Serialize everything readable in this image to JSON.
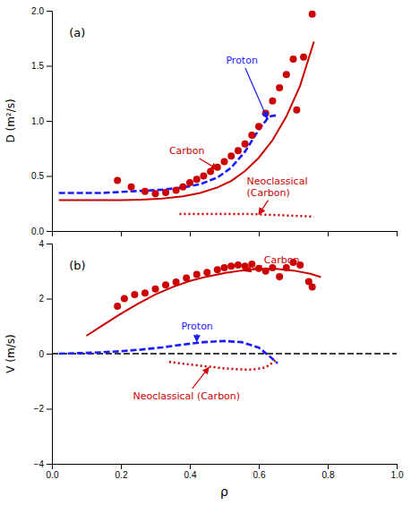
{
  "chart_data": [
    {
      "type": "line",
      "title": "(a)",
      "ylabel": "D (m²/s)",
      "xlim": [
        0.0,
        1.0
      ],
      "xticks": [
        {
          "value": 0,
          "label": "0.0"
        },
        0.2,
        0.4,
        0.6,
        0.8,
        {
          "value": 1,
          "label": "1.0"
        }
      ],
      "ylim": [
        0,
        2.0
      ],
      "yticks": [
        {
          "value": 0,
          "label": "0.0"
        },
        0.5,
        {
          "value": 1,
          "label": "1.0"
        },
        1.5,
        {
          "value": 2,
          "label": "2.0"
        }
      ],
      "tick_labels": "y",
      "series": [
        {
          "type": "line",
          "color": "#cc0000",
          "line_style": "solid",
          "x": [
            0.02,
            0.08,
            0.14,
            0.2,
            0.26,
            0.32,
            0.38,
            0.43,
            0.48,
            0.52,
            0.56,
            0.6,
            0.64,
            0.68,
            0.72,
            0.76
          ],
          "values": [
            0.28,
            0.28,
            0.28,
            0.28,
            0.285,
            0.295,
            0.315,
            0.345,
            0.395,
            0.455,
            0.545,
            0.665,
            0.825,
            1.04,
            1.32,
            1.72
          ]
        },
        {
          "type": "line",
          "color": "#1a1aff",
          "line_style": "dashed",
          "x": [
            0.02,
            0.08,
            0.14,
            0.2,
            0.26,
            0.32,
            0.38,
            0.43,
            0.48,
            0.52,
            0.56,
            0.6,
            0.63,
            0.65
          ],
          "values": [
            0.345,
            0.345,
            0.345,
            0.355,
            0.365,
            0.375,
            0.395,
            0.425,
            0.485,
            0.575,
            0.72,
            0.92,
            1.04,
            1.05
          ]
        },
        {
          "type": "line",
          "color": "#cc0000",
          "line_style": "dotted",
          "x": [
            0.37,
            0.41,
            0.45,
            0.49,
            0.53,
            0.57,
            0.61,
            0.65,
            0.69,
            0.73,
            0.76
          ],
          "values": [
            0.155,
            0.155,
            0.155,
            0.155,
            0.155,
            0.155,
            0.15,
            0.145,
            0.14,
            0.135,
            0.13
          ]
        },
        {
          "type": "scatter",
          "color": "#cc0000",
          "marker": "circle",
          "x": [
            0.19,
            0.23,
            0.27,
            0.3,
            0.33,
            0.36,
            0.38,
            0.4,
            0.42,
            0.44,
            0.46,
            0.48,
            0.5,
            0.52,
            0.54,
            0.56,
            0.58,
            0.6,
            0.62,
            0.64,
            0.66,
            0.68,
            0.7,
            0.71,
            0.73,
            0.755
          ],
          "values": [
            0.46,
            0.4,
            0.36,
            0.34,
            0.35,
            0.37,
            0.4,
            0.44,
            0.47,
            0.5,
            0.54,
            0.58,
            0.63,
            0.68,
            0.73,
            0.79,
            0.87,
            0.95,
            1.07,
            1.18,
            1.3,
            1.42,
            1.56,
            1.1,
            1.58,
            1.97
          ]
        }
      ],
      "annotations": [
        {
          "text": "Carbon",
          "color": "#cc0000",
          "x": 0.48,
          "y": 0.56,
          "text_x": 0.34,
          "text_y": 0.7
        },
        {
          "text": "Proton",
          "color": "#1a1aff",
          "x": 0.625,
          "y": 1.02,
          "text_x": 0.505,
          "text_y": 1.52
        },
        {
          "text": "Neoclassical\n(Carbon)",
          "color": "#cc0000",
          "x": 0.6,
          "y": 0.152,
          "text_x": 0.565,
          "text_y": 0.32
        }
      ]
    },
    {
      "type": "line",
      "title": "(b)",
      "ylabel": "V (m/s)",
      "xlabel": "ρ",
      "xlim": [
        0.0,
        1.0
      ],
      "xticks": [
        {
          "value": 0,
          "label": "0.0"
        },
        0.2,
        0.4,
        0.6,
        0.8,
        {
          "value": 1,
          "label": "1.0"
        }
      ],
      "ylim": [
        -4.0,
        4.0
      ],
      "yticks": [
        {
          "value": -4,
          "label": "−4"
        },
        {
          "value": -2,
          "label": "−2"
        },
        0,
        2,
        4
      ],
      "series": [
        {
          "type": "hline",
          "color": "#000000",
          "line_style": "dashed",
          "values": [
            0
          ]
        },
        {
          "type": "line",
          "color": "#cc0000",
          "line_style": "solid",
          "x": [
            0.1,
            0.15,
            0.2,
            0.25,
            0.3,
            0.35,
            0.4,
            0.45,
            0.5,
            0.55,
            0.6,
            0.65,
            0.7,
            0.75,
            0.78
          ],
          "values": [
            0.65,
            1.05,
            1.45,
            1.82,
            2.15,
            2.42,
            2.64,
            2.8,
            2.93,
            3.02,
            3.08,
            3.08,
            3.02,
            2.9,
            2.78
          ]
        },
        {
          "type": "line",
          "color": "#1a1aff",
          "line_style": "dashed",
          "x": [
            0.02,
            0.08,
            0.14,
            0.2,
            0.26,
            0.32,
            0.38,
            0.44,
            0.5,
            0.55,
            0.6,
            0.63,
            0.645,
            0.655
          ],
          "values": [
            0.0,
            0.02,
            0.05,
            0.09,
            0.15,
            0.23,
            0.33,
            0.42,
            0.46,
            0.42,
            0.22,
            -0.08,
            -0.25,
            -0.35
          ]
        },
        {
          "type": "line",
          "color": "#cc0000",
          "line_style": "dotted",
          "x": [
            0.34,
            0.39,
            0.44,
            0.49,
            0.54,
            0.58,
            0.62,
            0.645,
            0.655
          ],
          "values": [
            -0.3,
            -0.38,
            -0.45,
            -0.52,
            -0.57,
            -0.58,
            -0.5,
            -0.28,
            -0.18
          ]
        },
        {
          "type": "scatter",
          "color": "#cc0000",
          "marker": "circle",
          "x": [
            0.19,
            0.21,
            0.24,
            0.27,
            0.3,
            0.33,
            0.36,
            0.39,
            0.42,
            0.45,
            0.48,
            0.5,
            0.52,
            0.54,
            0.56,
            0.58,
            0.6,
            0.62,
            0.64,
            0.66,
            0.68,
            0.7,
            0.72,
            0.745,
            0.755
          ],
          "values": [
            1.72,
            2.0,
            2.15,
            2.2,
            2.35,
            2.5,
            2.6,
            2.75,
            2.88,
            2.95,
            3.05,
            3.12,
            3.18,
            3.22,
            3.18,
            3.25,
            3.1,
            3.0,
            3.12,
            2.8,
            3.12,
            3.32,
            3.22,
            2.62,
            2.42
          ]
        }
      ],
      "annotations": [
        {
          "text": "Carbon",
          "color": "#cc0000",
          "x": 0.56,
          "y": 3.0,
          "text_x": 0.615,
          "text_y": 3.3
        },
        {
          "text": "Proton",
          "color": "#1a1aff",
          "x": 0.42,
          "y": 0.44,
          "text_x": 0.375,
          "text_y": 0.88
        },
        {
          "text": "Neoclassical (Carbon)",
          "color": "#cc0000",
          "x": 0.455,
          "y": -0.5,
          "text_x": 0.235,
          "text_y": -1.65
        }
      ]
    }
  ]
}
